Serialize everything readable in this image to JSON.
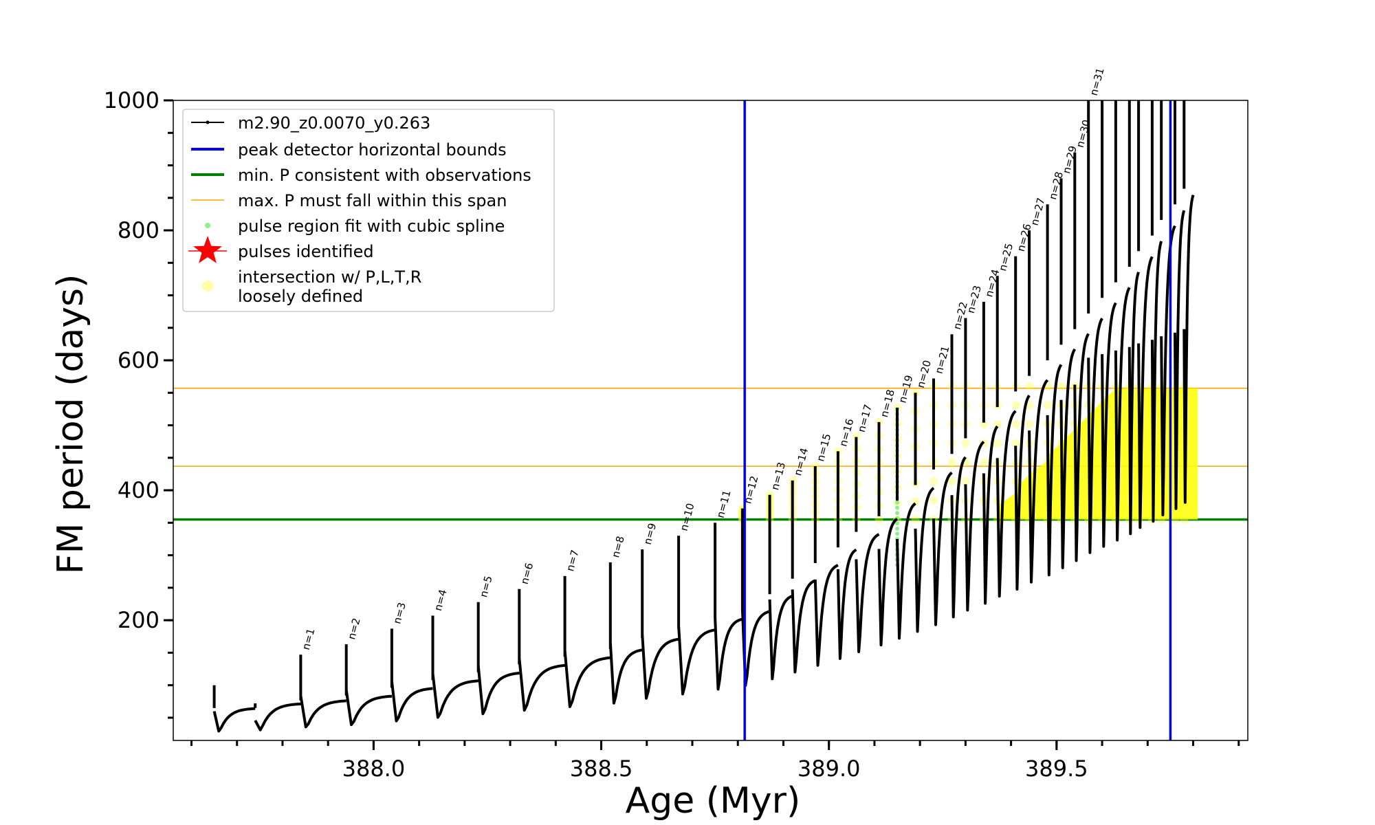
{
  "chart_data": {
    "type": "line",
    "title": "",
    "xlabel": "Age (Myr)",
    "ylabel": "FM period (days)",
    "xlim": [
      387.56,
      389.92
    ],
    "ylim": [
      15,
      1000
    ],
    "xticks": [
      "388.0",
      "388.5",
      "389.0",
      "389.5"
    ],
    "yticks": [
      "200",
      "400",
      "600",
      "800",
      "1000"
    ],
    "grid": false,
    "legend_position": "upper-left",
    "legend": [
      {
        "label": "m2.90_z0.0070_y0.263",
        "color": "#000000",
        "kind": "line-marker"
      },
      {
        "label": "peak detector horizontal bounds",
        "color": "#0000ff",
        "kind": "line"
      },
      {
        "label": "min. P consistent with observations",
        "color": "#008000",
        "kind": "line"
      },
      {
        "label": "max. P must fall within this span",
        "color": "#ffa500",
        "kind": "thin-line"
      },
      {
        "label": "pulse region fit with cubic spline",
        "color": "#90ee90",
        "kind": "dot"
      },
      {
        "label": "pulses identified",
        "color": "#ff0000",
        "kind": "star"
      },
      {
        "label": "intersection w/ P,L,T,R",
        "label2": "loosely defined",
        "color": "#ffff66",
        "kind": "circle"
      }
    ],
    "vertical_lines": [
      388.815,
      389.75
    ],
    "min_period_line": 355,
    "max_period_span": [
      437,
      557
    ],
    "series": [
      {
        "name": "m2.90_z0.0070_y0.263",
        "pulses": [
          {
            "n": "",
            "age": 387.65,
            "peak": 100,
            "trough": 27
          },
          {
            "n": "",
            "age": 387.74,
            "peak": 65,
            "trough": 30
          },
          {
            "n": "n=1",
            "age": 387.84,
            "peak": 147,
            "trough": 32
          },
          {
            "n": "n=2",
            "age": 387.94,
            "peak": 163,
            "trough": 35
          },
          {
            "n": "n=3",
            "age": 388.04,
            "peak": 187,
            "trough": 40
          },
          {
            "n": "n=4",
            "age": 388.13,
            "peak": 207,
            "trough": 45
          },
          {
            "n": "n=5",
            "age": 388.23,
            "peak": 228,
            "trough": 50
          },
          {
            "n": "n=6",
            "age": 388.32,
            "peak": 248,
            "trough": 55
          },
          {
            "n": "n=7",
            "age": 388.42,
            "peak": 268,
            "trough": 60
          },
          {
            "n": "n=8",
            "age": 388.52,
            "peak": 289,
            "trough": 65
          },
          {
            "n": "n=9",
            "age": 388.59,
            "peak": 309,
            "trough": 72
          },
          {
            "n": "n=10",
            "age": 388.67,
            "peak": 330,
            "trough": 78
          },
          {
            "n": "n=11",
            "age": 388.75,
            "peak": 350,
            "trough": 85
          },
          {
            "n": "n=12",
            "age": 388.81,
            "peak": 372,
            "trough": 90
          },
          {
            "n": "n=13",
            "age": 388.87,
            "peak": 393,
            "trough": 100
          },
          {
            "n": "n=14",
            "age": 388.92,
            "peak": 415,
            "trough": 110
          },
          {
            "n": "n=15",
            "age": 388.97,
            "peak": 437,
            "trough": 120
          },
          {
            "n": "n=16",
            "age": 389.02,
            "peak": 460,
            "trough": 130
          },
          {
            "n": "n=17",
            "age": 389.06,
            "peak": 482,
            "trough": 140
          },
          {
            "n": "n=18",
            "age": 389.11,
            "peak": 505,
            "trough": 150
          },
          {
            "n": "n=19",
            "age": 389.15,
            "peak": 527,
            "trough": 160
          },
          {
            "n": "n=20",
            "age": 389.19,
            "peak": 550,
            "trough": 170
          },
          {
            "n": "n=21",
            "age": 389.23,
            "peak": 572,
            "trough": 180
          },
          {
            "n": "n=22",
            "age": 389.27,
            "peak": 640,
            "trough": 190
          },
          {
            "n": "n=23",
            "age": 389.3,
            "peak": 665,
            "trough": 200
          },
          {
            "n": "n=24",
            "age": 389.34,
            "peak": 690,
            "trough": 210
          },
          {
            "n": "n=25",
            "age": 389.37,
            "peak": 730,
            "trough": 220
          },
          {
            "n": "n=26",
            "age": 389.41,
            "peak": 760,
            "trough": 230
          },
          {
            "n": "n=27",
            "age": 389.44,
            "peak": 800,
            "trough": 240
          },
          {
            "n": "n=28",
            "age": 389.48,
            "peak": 840,
            "trough": 250
          },
          {
            "n": "n=29",
            "age": 389.51,
            "peak": 880,
            "trough": 260
          },
          {
            "n": "n=30",
            "age": 389.54,
            "peak": 920,
            "trough": 270
          },
          {
            "n": "n=31",
            "age": 389.57,
            "peak": 1000,
            "trough": 280
          },
          {
            "n": "",
            "age": 389.6,
            "peak": 1000,
            "trough": 290
          },
          {
            "n": "",
            "age": 389.63,
            "peak": 1000,
            "trough": 300
          },
          {
            "n": "",
            "age": 389.66,
            "peak": 1000,
            "trough": 310
          },
          {
            "n": "",
            "age": 389.68,
            "peak": 1000,
            "trough": 320
          },
          {
            "n": "",
            "age": 389.71,
            "peak": 1000,
            "trough": 330
          },
          {
            "n": "",
            "age": 389.73,
            "peak": 1000,
            "trough": 340
          },
          {
            "n": "",
            "age": 389.76,
            "peak": 1000,
            "trough": 350
          },
          {
            "n": "",
            "age": 389.78,
            "peak": 1000,
            "trough": 360
          }
        ]
      }
    ]
  }
}
